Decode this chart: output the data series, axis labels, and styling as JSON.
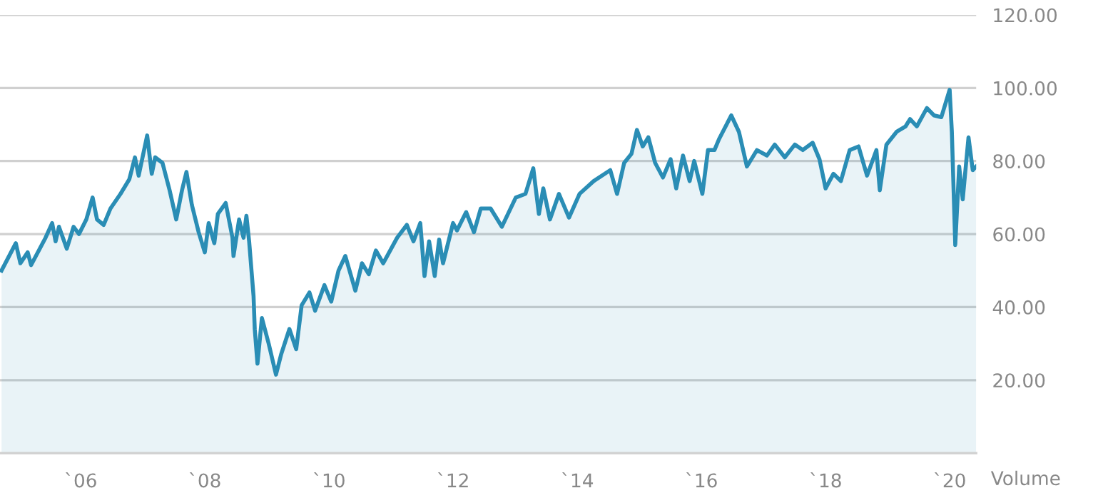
{
  "chart_data": {
    "type": "area",
    "xlabel": "Volume",
    "xlim": [
      "2004-09-13",
      "2020-06-05"
    ],
    "ylim": [
      0,
      120
    ],
    "xticks": [
      {
        "value": "2006-01-01",
        "label": "`06"
      },
      {
        "value": "2008-01-01",
        "label": "`08"
      },
      {
        "value": "2010-01-01",
        "label": "`10"
      },
      {
        "value": "2012-01-01",
        "label": "`12"
      },
      {
        "value": "2014-01-01",
        "label": "`14"
      },
      {
        "value": "2016-01-01",
        "label": "`16"
      },
      {
        "value": "2018-01-01",
        "label": "`18"
      },
      {
        "value": "2020-01-01",
        "label": "`20"
      }
    ],
    "yticks": [
      {
        "value": 20,
        "label": "20.00"
      },
      {
        "value": 40,
        "label": "40.00"
      },
      {
        "value": 60,
        "label": "60.00"
      },
      {
        "value": 80,
        "label": "80.00"
      },
      {
        "value": 100,
        "label": "100.00"
      },
      {
        "value": 120,
        "label": "120.00"
      }
    ],
    "grid": "y",
    "series": [
      {
        "color": "#2a8db5",
        "x": [
          "2004-09-22",
          "2004-12-15",
          "2005-01-11",
          "2005-02-23",
          "2005-03-15",
          "2005-06-08",
          "2005-07-17",
          "2005-08-06",
          "2005-08-26",
          "2005-10-11",
          "2005-11-20",
          "2005-12-22",
          "2006-02-03",
          "2006-03-12",
          "2006-04-07",
          "2006-05-16",
          "2006-06-25",
          "2006-08-23",
          "2006-10-14",
          "2006-11-16",
          "2006-12-08",
          "2007-01-27",
          "2007-02-23",
          "2007-03-15",
          "2007-04-27",
          "2007-06-08",
          "2007-07-17",
          "2007-08-20",
          "2007-09-15",
          "2007-10-17",
          "2007-11-26",
          "2008-01-01",
          "2008-01-24",
          "2008-02-26",
          "2008-03-18",
          "2008-05-03",
          "2008-06-12",
          "2008-06-18",
          "2008-07-21",
          "2008-08-16",
          "2008-09-02",
          "2008-09-18",
          "2008-10-14",
          "2008-10-21",
          "2008-11-06",
          "2008-12-02",
          "2009-01-11",
          "2009-02-23",
          "2009-03-25",
          "2009-05-13",
          "2009-06-22",
          "2009-07-24",
          "2009-09-08",
          "2009-10-11",
          "2009-12-05",
          "2010-01-14",
          "2010-02-26",
          "2010-04-07",
          "2010-06-05",
          "2010-07-14",
          "2010-08-23",
          "2010-10-04",
          "2010-11-16",
          "2011-02-06",
          "2011-04-04",
          "2011-05-13",
          "2011-06-22",
          "2011-07-17",
          "2011-08-13",
          "2011-09-15",
          "2011-10-11",
          "2011-11-03",
          "2012-01-01",
          "2012-01-24",
          "2012-03-18",
          "2012-05-03",
          "2012-06-12",
          "2012-08-09",
          "2012-10-14",
          "2013-01-04",
          "2013-03-02",
          "2013-04-17",
          "2013-05-20",
          "2013-06-15",
          "2013-07-24",
          "2013-09-15",
          "2013-11-13",
          "2014-01-14",
          "2014-04-07",
          "2014-07-14",
          "2014-08-23",
          "2014-10-04",
          "2014-11-16",
          "2014-12-18",
          "2015-01-21",
          "2015-02-23",
          "2015-04-04",
          "2015-05-20",
          "2015-07-04",
          "2015-08-06",
          "2015-09-15",
          "2015-10-24",
          "2015-11-20",
          "2016-01-07",
          "2016-02-09",
          "2016-03-18",
          "2016-04-14",
          "2016-06-25",
          "2016-08-09",
          "2016-09-25",
          "2016-11-23",
          "2017-01-21",
          "2017-03-08",
          "2017-05-06",
          "2017-07-04",
          "2017-08-20",
          "2017-10-17",
          "2017-11-26",
          "2018-01-01",
          "2018-02-16",
          "2018-04-01",
          "2018-05-23",
          "2018-07-14",
          "2018-09-02",
          "2018-10-27",
          "2018-11-16",
          "2018-12-25",
          "2019-02-23",
          "2019-04-17",
          "2019-05-13",
          "2019-06-22",
          "2019-08-20",
          "2019-10-01",
          "2019-11-13",
          "2020-01-01",
          "2020-01-14",
          "2020-02-03",
          "2020-02-26",
          "2020-03-18",
          "2020-04-21",
          "2020-05-16",
          "2020-06-05"
        ],
        "values": [
          50,
          57.5,
          52,
          55,
          51.5,
          59,
          63,
          58,
          62,
          56,
          62,
          60,
          64,
          70,
          64,
          62.5,
          67,
          71,
          75,
          81,
          76,
          87,
          76.5,
          81,
          79.5,
          72,
          64,
          72,
          77,
          68,
          60.5,
          55,
          63,
          57.5,
          65.5,
          68.5,
          59,
          54,
          64,
          59,
          65,
          58,
          43,
          34,
          24.5,
          37,
          30,
          21.5,
          27,
          34,
          28.5,
          40.5,
          44,
          39,
          46,
          41.5,
          50,
          54,
          44.5,
          52,
          49,
          55.5,
          52,
          59,
          62.5,
          58,
          63,
          48.5,
          58,
          48.5,
          58.5,
          52,
          63,
          61,
          66,
          60.5,
          67,
          67,
          62,
          70,
          71,
          78,
          65.5,
          72.5,
          64,
          71,
          64.5,
          71,
          74.5,
          77.5,
          71,
          79.5,
          82,
          88.5,
          84,
          86.5,
          79.5,
          75.5,
          80.5,
          72.5,
          81.5,
          74.5,
          80,
          71,
          83,
          83,
          86,
          92.5,
          88,
          78.5,
          83,
          81.5,
          84.5,
          81,
          84.5,
          83,
          85,
          80.5,
          72.5,
          76.5,
          74.5,
          83,
          84,
          76,
          83,
          72,
          84.5,
          88,
          89.5,
          91.5,
          89.5,
          94.5,
          92.5,
          92,
          99.5,
          88,
          57,
          78.5,
          69.5,
          86.5,
          77.5,
          78.5
        ]
      }
    ]
  }
}
